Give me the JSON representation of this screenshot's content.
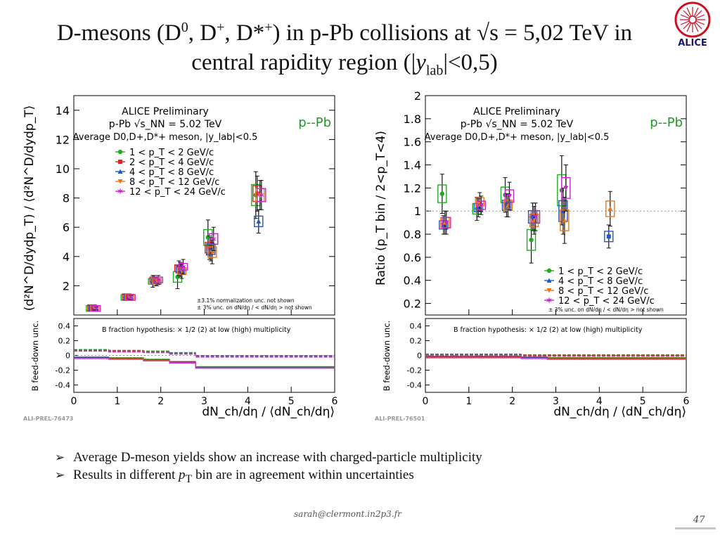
{
  "slide": {
    "title_line1_pre": "D-mesons (D",
    "title_sup0": "0",
    "title_mid1": ", D",
    "title_sup_plus": "+",
    "title_mid2": ", D*",
    "title_sup_plus2": "+",
    "title_line1_post": ") in p-Pb collisions at √s = 5,02 TeV  in",
    "title_line2_pre": "central rapidity region (|",
    "title_y": "y",
    "title_sub_lab": "lab",
    "title_line2_post": "|<0,5)",
    "logo_text": "ALICE",
    "bullets": [
      "Average D-meson yields show an increase with charged-particle multiplicity",
      "Results in different p bin are in agreement within uncertainties"
    ],
    "bullet2_parts": {
      "pre": "Results in different ",
      "p": "p",
      "sub": "T",
      "post": " bin are in agreement within uncertainties"
    },
    "footer_email": "sarah@clermont.in2p3.fr",
    "page_number": "47"
  },
  "chart_data": [
    {
      "type": "scatter",
      "panel": "left",
      "system_label": "p--Pb",
      "header_lines": [
        "ALICE Preliminary",
        "p-Pb  √s_NN = 5.02 TeV",
        "Average D0,D+,D*+ meson, |y_lab|<0.5"
      ],
      "ylabel": "(d²N^D/dydp_T) / ⟨d²N^D/dydp_T⟩",
      "xlabel": "dN_ch/dη / ⟨dN_ch/dη⟩",
      "xlim": [
        0,
        6
      ],
      "ylim": [
        0,
        15
      ],
      "yticks": [
        2,
        4,
        6,
        8,
        10,
        12,
        14
      ],
      "xticks": [
        0,
        1,
        2,
        3,
        4,
        5,
        6
      ],
      "notes": [
        "±3.1% normalization unc. not shown",
        "± 3% unc. on dN/dη / < dN/dη > not shown"
      ],
      "id_label": "ALI-PREL-76473",
      "series": [
        {
          "name": "1 < p_T < 2 GeV/c",
          "color": "#22aa22",
          "x": [
            0.45,
            1.25,
            1.88,
            2.45,
            3.15,
            4.25
          ],
          "y": [
            0.45,
            1.2,
            2.3,
            2.6,
            5.3,
            8.2
          ],
          "err": [
            0.12,
            0.2,
            0.4,
            0.8,
            1.2,
            1.6
          ]
        },
        {
          "name": "2 < p_T < 4 GeV/c",
          "color": "#dd2222",
          "x": [
            0.45,
            1.25,
            1.88,
            2.45,
            3.15,
            4.25
          ],
          "y": [
            0.5,
            1.25,
            2.4,
            3.2,
            4.6,
            8.3
          ],
          "err": [
            0.1,
            0.15,
            0.3,
            0.5,
            0.8,
            1.2
          ]
        },
        {
          "name": "4 < p_T < 8 GeV/c",
          "color": "#2255cc",
          "x": [
            0.45,
            1.25,
            1.88,
            2.45,
            3.15,
            4.25
          ],
          "y": [
            0.45,
            1.2,
            2.3,
            3.1,
            4.5,
            6.4
          ],
          "err": [
            0.1,
            0.15,
            0.3,
            0.5,
            0.8,
            0.8
          ]
        },
        {
          "name": "8 < p_T < 12 GeV/c",
          "color": "#ee7711",
          "x": [
            0.45,
            1.25,
            1.88,
            2.45,
            3.15,
            4.25
          ],
          "y": [
            0.45,
            1.22,
            2.3,
            3.0,
            4.3,
            8.2
          ],
          "err": [
            0.1,
            0.15,
            0.3,
            0.5,
            0.8,
            1.0
          ]
        },
        {
          "name": "12 < p_T < 24 GeV/c",
          "color": "#cc22cc",
          "x": [
            0.45,
            1.25,
            1.88,
            2.45,
            3.15,
            4.25
          ],
          "y": [
            0.45,
            1.2,
            2.4,
            3.3,
            5.2,
            8.2
          ],
          "err": [
            0.1,
            0.15,
            0.3,
            0.5,
            0.8,
            1.0
          ]
        }
      ],
      "subpanel": {
        "ylabel": "B feed-down unc.",
        "yticks": [
          0.4,
          0.2,
          0,
          -0.2,
          -0.4
        ],
        "ylim": [
          -0.5,
          0.5
        ],
        "note": "B fraction hypothesis: × 1/2 (2) at low (high) multiplicity",
        "upper_edges": [
          0,
          0.8,
          1.6,
          2.2,
          2.8,
          6
        ],
        "upper_values": [
          0.08,
          0.07,
          0.06,
          0.04,
          0.0
        ],
        "lower_values": [
          -0.02,
          -0.03,
          -0.05,
          -0.08,
          -0.15
        ]
      }
    },
    {
      "type": "scatter",
      "panel": "right",
      "system_label": "p--Pb",
      "header_lines": [
        "ALICE Preliminary",
        "p-Pb  √s_NN = 5.02 TeV",
        "Average D0,D+,D*+ meson, |y_lab|<0.5"
      ],
      "ylabel": "Ratio (p_T bin / 2<p_T<4)",
      "xlabel": "dN_ch/dη / ⟨dN_ch/dη⟩",
      "xlim": [
        0,
        6
      ],
      "ylim": [
        0.1,
        2
      ],
      "yticks": [
        0.2,
        0.4,
        0.6,
        0.8,
        1,
        1.2,
        1.4,
        1.6,
        1.8,
        2
      ],
      "xticks": [
        0,
        1,
        2,
        3,
        4,
        5,
        6
      ],
      "notes": [
        "± 3% unc. on dN/dη / < dN/dη > not shown"
      ],
      "id_label": "ALI-PREL-76501",
      "series": [
        {
          "name": "1 < p_T < 2 GeV/c",
          "color": "#22aa22",
          "x": [
            0.45,
            1.25,
            1.9,
            2.5,
            3.2
          ],
          "y": [
            1.15,
            1.02,
            1.14,
            0.75,
            1.18
          ],
          "err": [
            0.17,
            0.1,
            0.15,
            0.2,
            0.3
          ]
        },
        {
          "name": "4 < p_T < 8 GeV/c",
          "color": "#2255cc",
          "x": [
            0.45,
            1.25,
            1.9,
            2.5,
            3.2,
            4.25
          ],
          "y": [
            0.88,
            1.03,
            1.05,
            0.95,
            1.0,
            0.78
          ],
          "err": [
            0.08,
            0.08,
            0.1,
            0.12,
            0.2,
            0.1
          ]
        },
        {
          "name": "8 < p_T < 12 GeV/c",
          "color": "#ee7711",
          "x": [
            0.45,
            1.25,
            1.9,
            2.5,
            3.2,
            4.25
          ],
          "y": [
            0.9,
            1.08,
            1.05,
            0.92,
            0.92,
            1.02
          ],
          "err": [
            0.1,
            0.08,
            0.1,
            0.12,
            0.2,
            0.15
          ]
        },
        {
          "name": "12 < p_T < 24 GeV/c",
          "color": "#cc22cc",
          "x": [
            0.45,
            1.25,
            1.9,
            2.5,
            3.2
          ],
          "y": [
            0.9,
            1.05,
            1.13,
            0.95,
            1.2
          ],
          "err": [
            0.1,
            0.08,
            0.12,
            0.12,
            0.2
          ]
        }
      ],
      "subpanel": {
        "ylabel": "B feed-down unc.",
        "yticks": [
          0.4,
          0.2,
          0,
          -0.2,
          -0.4
        ],
        "ylim": [
          -0.5,
          0.5
        ],
        "note": "B fraction hypothesis: × 1/2 (2) at low (high) multiplicity",
        "upper_edges": [
          0,
          0.8,
          1.6,
          2.2,
          2.8,
          6
        ],
        "upper_values": [
          0.02,
          0.02,
          0.02,
          0.01,
          0.01
        ],
        "lower_values": [
          -0.01,
          -0.01,
          -0.01,
          -0.02,
          -0.03
        ]
      }
    }
  ]
}
